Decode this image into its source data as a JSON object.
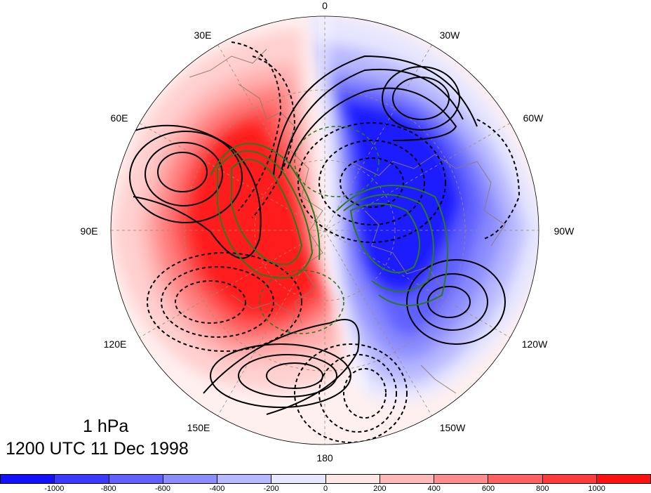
{
  "map": {
    "level_label": "1 hPa",
    "time_label": "1200 UTC 11 Dec 1998",
    "longitude_labels": [
      "0",
      "30W",
      "60W",
      "90W",
      "120W",
      "150W",
      "180",
      "150E",
      "120E",
      "90E",
      "60E",
      "30E"
    ],
    "colors": {
      "positive": "#ff1a1a",
      "negative": "#1a1aff",
      "contour_main": "#000000",
      "contour_green": "#2a7a1f",
      "coast": "#8b7b6b"
    }
  },
  "colorbar": {
    "colors": [
      "#1111ff",
      "#3a3aff",
      "#6060ff",
      "#8c8cff",
      "#b8b8ff",
      "#e6e6ff",
      "#ffe6e6",
      "#ffb8b8",
      "#ff8c8c",
      "#ff6060",
      "#ff3a3a",
      "#ff1111"
    ],
    "tick_labels": [
      "-1000",
      "-800",
      "-600",
      "-400",
      "-200",
      "0",
      "200",
      "400",
      "600",
      "800",
      "1000"
    ]
  }
}
